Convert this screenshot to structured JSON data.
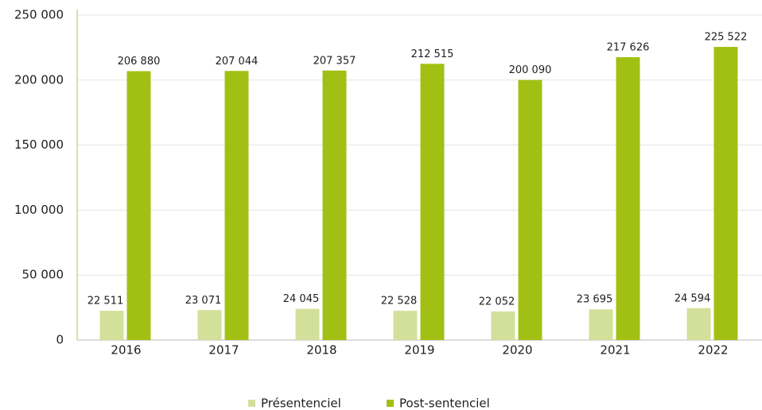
{
  "chart_data": {
    "type": "bar",
    "categories": [
      "2016",
      "2017",
      "2018",
      "2019",
      "2020",
      "2021",
      "2022"
    ],
    "series": [
      {
        "name": "Présentenciel",
        "color": "#d3e09a",
        "values": [
          22511,
          23071,
          24045,
          22528,
          22052,
          23695,
          24594
        ],
        "value_labels": [
          "22 511",
          "23 071",
          "24 045",
          "22 528",
          "22 052",
          "23 695",
          "24 594"
        ]
      },
      {
        "name": "Post-sentenciel",
        "color": "#a2c014",
        "values": [
          206880,
          207044,
          207357,
          212515,
          200090,
          217626,
          225522
        ],
        "value_labels": [
          "206 880",
          "207 044",
          "207 357",
          "212 515",
          "200 090",
          "217 626",
          "225 522"
        ]
      }
    ],
    "ylim": [
      0,
      250000
    ],
    "yticks": [
      0,
      {
        "value": 50000,
        "label": "50 000"
      },
      {
        "value": 100000,
        "label": "100 000"
      },
      {
        "value": 150000,
        "label": "150 000"
      },
      {
        "value": 200000,
        "label": "200 000"
      },
      {
        "value": 250000,
        "label": "250 000"
      }
    ],
    "grid": true,
    "legend": "bottom"
  }
}
